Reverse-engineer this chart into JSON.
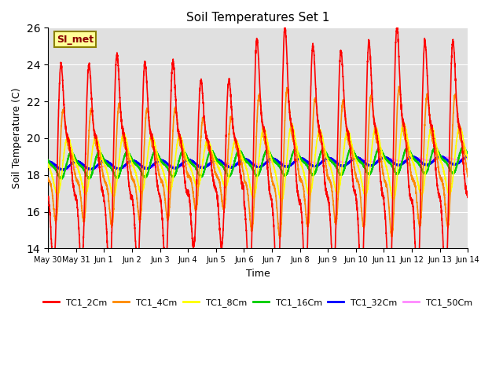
{
  "title": "Soil Temperatures Set 1",
  "xlabel": "Time",
  "ylabel": "Soil Temperature (C)",
  "ylim": [
    14,
    26
  ],
  "yticks": [
    14,
    16,
    18,
    20,
    22,
    24,
    26
  ],
  "xlim_days": [
    0,
    15.0
  ],
  "background_color": "#e0e0e0",
  "annotation_text": "SI_met",
  "annotation_color": "#8B0000",
  "annotation_bg": "#ffff99",
  "annotation_border": "#8B8000",
  "series_colors": {
    "TC1_2Cm": "#ff0000",
    "TC1_4Cm": "#ff8800",
    "TC1_8Cm": "#ffff00",
    "TC1_16Cm": "#00cc00",
    "TC1_32Cm": "#0000ff",
    "TC1_50Cm": "#ff88ff"
  },
  "tick_labels": [
    "May 30",
    "May 31",
    "Jun 1",
    "Jun 2",
    "Jun 3",
    "Jun 4",
    "Jun 5",
    "Jun 6",
    "Jun 7",
    "Jun 8",
    "Jun 9",
    "Jun 10",
    "Jun 11",
    "Jun 12",
    "Jun 13",
    "Jun 14"
  ],
  "tick_positions": [
    0,
    1,
    2,
    3,
    4,
    5,
    6,
    7,
    8,
    9,
    10,
    11,
    12,
    13,
    14,
    15
  ],
  "base_temp": 18.5,
  "base_trend_slope": 0.02,
  "n_per_day": 288,
  "n_days": 15
}
